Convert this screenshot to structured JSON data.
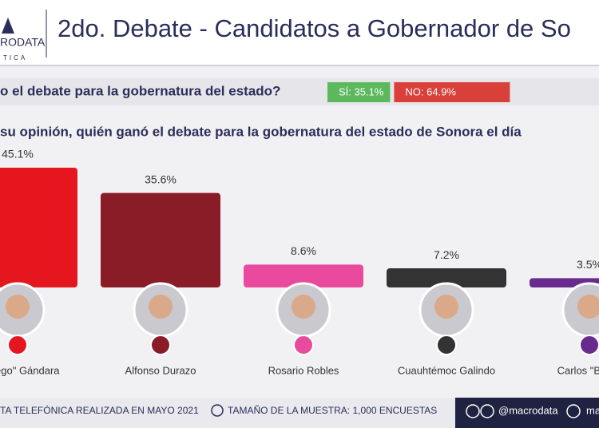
{
  "header": {
    "logo": "RODATA",
    "logo_sub": "TICA"
  },
  "chart_data": {
    "type": "bar",
    "title": "2do. Debate - Candidatos a Gobernador de So",
    "question_1": "o el debate para la gobernatura del estado?",
    "answers": {
      "values": [
        35.1,
        64.9
      ],
      "value_labels": [
        "SÍ: 35.1%",
        "NO: 64.9%"
      ],
      "colors": [
        "#5cb85c",
        "#d9403a"
      ]
    },
    "question_2": "su opinión, quién ganó el debate para la gobernatura del estado de Sonora el día",
    "categories": [
      "Borrego\" Gándara",
      "Alfonso Durazo",
      "Rosario Robles",
      "Cuauhtémoc Galindo",
      "Carlos \"Bebo\""
    ],
    "values": [
      45.1,
      35.6,
      8.6,
      7.2,
      3.5
    ],
    "value_labels": [
      "45.1%",
      "35.6%",
      "8.6%",
      "7.2%",
      "3.5%"
    ],
    "colors": [
      "#e5161d",
      "#8a1c27",
      "#e94a9d",
      "#333333",
      "#6a2b8e"
    ]
  },
  "footer": {
    "method": "TA TELEFÓNICA REALIZADA EN MAYO 2021",
    "sample": "TAMAÑO DE LA MUESTRA: 1,000 ENCUESTAS",
    "handle": "@macrodata",
    "site": "ma"
  }
}
